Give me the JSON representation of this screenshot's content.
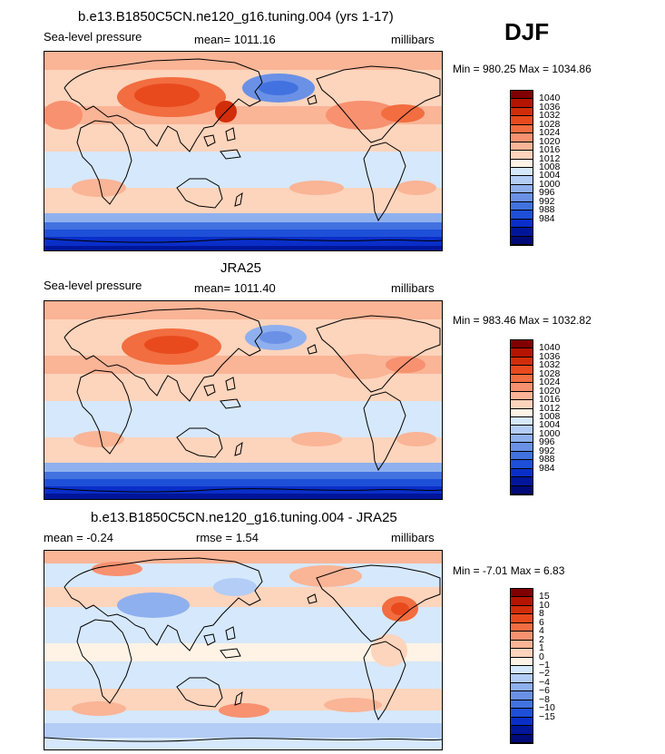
{
  "season": "DJF",
  "units": "millibars",
  "panels": [
    {
      "title": "b.e13.B1850C5CN.ne120_g16.tuning.004 (yrs 1-17)",
      "field": "Sea-level pressure",
      "stat": "mean=  1011.16",
      "units": "millibars",
      "minmax": "Min = 980.25  Max = 1034.86"
    },
    {
      "title": "JRA25",
      "field": "Sea-level pressure",
      "stat": "mean=  1011.40",
      "units": "millibars",
      "minmax": "Min = 983.46  Max = 1032.82"
    },
    {
      "title": "b.e13.B1850C5CN.ne120_g16.tuning.004 - JRA25",
      "mean": "mean =   -0.24",
      "rmse": "rmse =     1.54",
      "units": "millibars",
      "minmax": "Min =  -7.01  Max =    6.83"
    }
  ],
  "chart_data": [
    {
      "type": "heatmap",
      "title": "b.e13.B1850C5CN.ne120_g16.tuning.004 (yrs 1-17)",
      "variable": "Sea-level pressure",
      "units": "millibars",
      "mean": 1011.16,
      "min": 980.25,
      "max": 1034.86,
      "colorbar_levels": [
        1040,
        1036,
        1032,
        1028,
        1024,
        1020,
        1016,
        1012,
        1008,
        1004,
        1000,
        996,
        992,
        988,
        984
      ],
      "colors": [
        "#800000",
        "#b41400",
        "#d22d0a",
        "#e84a1e",
        "#f26d40",
        "#f79170",
        "#fab496",
        "#fdd4bc",
        "#fff3e6",
        "#d6e8fb",
        "#b4cdf6",
        "#8fb0ee",
        "#6a91e6",
        "#4172e0",
        "#1e4fd8",
        "#0a2ec8",
        "#00169a",
        "#000a78"
      ]
    },
    {
      "type": "heatmap",
      "title": "JRA25",
      "variable": "Sea-level pressure",
      "units": "millibars",
      "mean": 1011.4,
      "min": 983.46,
      "max": 1032.82,
      "colorbar_levels": [
        1040,
        1036,
        1032,
        1028,
        1024,
        1020,
        1016,
        1012,
        1008,
        1004,
        1000,
        996,
        992,
        988,
        984
      ],
      "colors": [
        "#800000",
        "#b41400",
        "#d22d0a",
        "#e84a1e",
        "#f26d40",
        "#f79170",
        "#fab496",
        "#fdd4bc",
        "#fff3e6",
        "#d6e8fb",
        "#b4cdf6",
        "#8fb0ee",
        "#6a91e6",
        "#4172e0",
        "#1e4fd8",
        "#0a2ec8",
        "#00169a",
        "#000a78"
      ]
    },
    {
      "type": "heatmap",
      "title": "b.e13.B1850C5CN.ne120_g16.tuning.004 - JRA25",
      "variable": "Sea-level pressure difference",
      "units": "millibars",
      "mean": -0.24,
      "rmse": 1.54,
      "min": -7.01,
      "max": 6.83,
      "colorbar_levels": [
        "15",
        "10",
        "8",
        "6",
        "4",
        "2",
        "1",
        "0",
        "−1",
        "−2",
        "−4",
        "−6",
        "−8",
        "−10",
        "−15"
      ],
      "colors": [
        "#800000",
        "#b41400",
        "#d22d0a",
        "#e84a1e",
        "#f26d40",
        "#f79170",
        "#fab496",
        "#fdd4bc",
        "#fff3e6",
        "#d6e8fb",
        "#b4cdf6",
        "#8fb0ee",
        "#6a91e6",
        "#4172e0",
        "#1e4fd8",
        "#0a2ec8",
        "#00169a",
        "#000a78"
      ]
    }
  ]
}
